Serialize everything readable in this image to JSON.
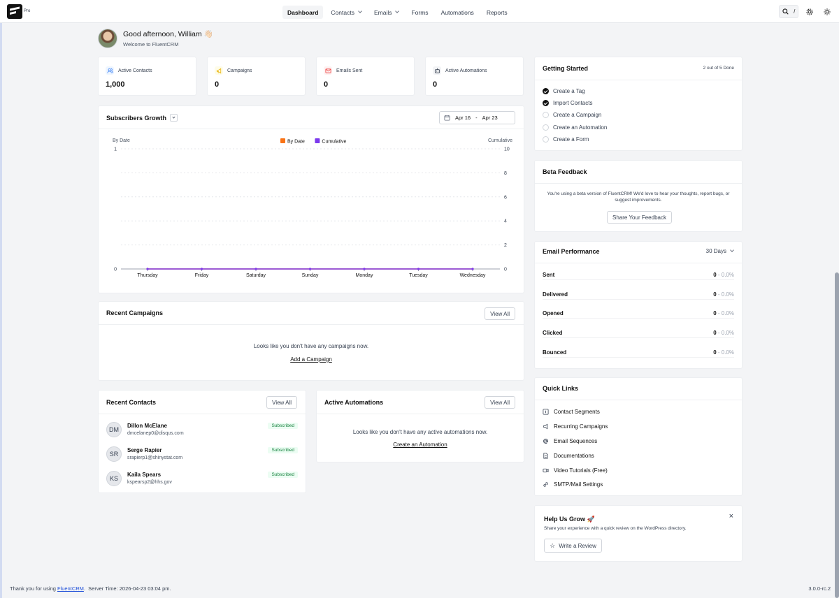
{
  "topbar": {
    "brand_badge": "Pro",
    "nav": [
      {
        "label": "Dashboard",
        "active": true,
        "dropdown": false
      },
      {
        "label": "Contacts",
        "active": false,
        "dropdown": true
      },
      {
        "label": "Emails",
        "active": false,
        "dropdown": true
      },
      {
        "label": "Forms",
        "active": false,
        "dropdown": false
      },
      {
        "label": "Automations",
        "active": false,
        "dropdown": false
      },
      {
        "label": "Reports",
        "active": false,
        "dropdown": false
      }
    ],
    "search_shortcut": "/",
    "icons": [
      "search-icon",
      "gear-icon",
      "sun-icon"
    ]
  },
  "greeting": {
    "title": "Good afternoon, William 👋🏻",
    "subtitle": "Welcome to FluentCRM"
  },
  "stats": [
    {
      "label": "Active Contacts",
      "value": "1,000",
      "icon": "users-icon",
      "color": "#3b82f6"
    },
    {
      "label": "Campaigns",
      "value": "0",
      "icon": "megaphone-icon",
      "color": "#eab308"
    },
    {
      "label": "Emails Sent",
      "value": "0",
      "icon": "mail-icon",
      "color": "#ef4444"
    },
    {
      "label": "Active Automations",
      "value": "0",
      "icon": "robot-icon",
      "color": "#374151"
    }
  ],
  "growth": {
    "title": "Subscribers Growth",
    "date_from": "Apr 16",
    "date_to": "Apr 23",
    "date_sep": "-"
  },
  "chart_data": {
    "type": "line",
    "categories": [
      "Thursday",
      "Friday",
      "Saturday",
      "Sunday",
      "Monday",
      "Tuesday",
      "Wednesday"
    ],
    "series": [
      {
        "name": "By Date",
        "values": [
          0,
          0,
          0,
          0,
          0,
          0,
          0
        ],
        "color": "#f97316",
        "axis": "left"
      },
      {
        "name": "Cumulative",
        "values": [
          0,
          0,
          0,
          0,
          0,
          0,
          0
        ],
        "color": "#7c3aed",
        "axis": "right"
      }
    ],
    "left_axis": {
      "label": "By Date",
      "ticks": [
        "1",
        "0"
      ],
      "range": [
        0,
        1
      ]
    },
    "right_axis": {
      "label": "Cumulative",
      "ticks": [
        "10",
        "8",
        "6",
        "4",
        "2",
        "0"
      ],
      "range": [
        0,
        10
      ]
    },
    "legend_position": "top-center",
    "grid": true
  },
  "campaigns": {
    "title": "Recent Campaigns",
    "view_all": "View All",
    "empty_text": "Looks like you don't have any campaigns now.",
    "cta": "Add a Campaign"
  },
  "contacts": {
    "title": "Recent Contacts",
    "view_all": "View All",
    "items": [
      {
        "initials": "DM",
        "name": "Dillon McElane",
        "email": "dmcelanep0@disqus.com",
        "status": "Subscribed"
      },
      {
        "initials": "SR",
        "name": "Serge Rapier",
        "email": "srapierp1@shinystat.com",
        "status": "Subscribed"
      },
      {
        "initials": "KS",
        "name": "Kaila Spears",
        "email": "kspearsp2@hhs.gov",
        "status": "Subscribed"
      }
    ]
  },
  "automations": {
    "title": "Active Automations",
    "view_all": "View All",
    "empty_text": "Looks like you don't have any active automations now.",
    "cta": "Create an Automation"
  },
  "getting_started": {
    "title": "Getting Started",
    "progress": "2 out of 5 Done",
    "items": [
      {
        "label": "Create a Tag",
        "done": true
      },
      {
        "label": "Import Contacts",
        "done": true
      },
      {
        "label": "Create a Campaign",
        "done": false
      },
      {
        "label": "Create an Automation",
        "done": false
      },
      {
        "label": "Create a Form",
        "done": false
      }
    ]
  },
  "beta": {
    "title": "Beta Feedback",
    "text": "You're using a beta version of FluentCRM! We'd love to hear your thoughts, report bugs, or suggest improvements.",
    "button": "Share Your Feedback"
  },
  "performance": {
    "title": "Email Performance",
    "range": "30 Days",
    "rows": [
      {
        "label": "Sent",
        "count": "0",
        "pct": "- 0.0%"
      },
      {
        "label": "Delivered",
        "count": "0",
        "pct": "- 0.0%"
      },
      {
        "label": "Opened",
        "count": "0",
        "pct": "- 0.0%"
      },
      {
        "label": "Clicked",
        "count": "0",
        "pct": "- 0.0%"
      },
      {
        "label": "Bounced",
        "count": "0",
        "pct": "- 0.0%"
      }
    ]
  },
  "quick_links": {
    "title": "Quick Links",
    "items": [
      {
        "label": "Contact Segments",
        "icon": "segment-icon"
      },
      {
        "label": "Recurring Campaigns",
        "icon": "megaphone-icon"
      },
      {
        "label": "Email Sequences",
        "icon": "at-icon"
      },
      {
        "label": "Documentations",
        "icon": "document-icon"
      },
      {
        "label": "Video Tutorials (Free)",
        "icon": "video-icon"
      },
      {
        "label": "SMTP/Mail Settings",
        "icon": "link-icon"
      }
    ]
  },
  "grow": {
    "title": "Help Us Grow 🚀",
    "text": "Share your experience with a quick review on the WordPress directory.",
    "button": "Write a Review"
  },
  "footer": {
    "thanks_prefix": "Thank you for using",
    "brand_link": "FluentCRM",
    "thanks_suffix": ".",
    "server_time": "Server Time: 2026-04-23 03:04 pm.",
    "version": "3.0.0-rc.2"
  }
}
